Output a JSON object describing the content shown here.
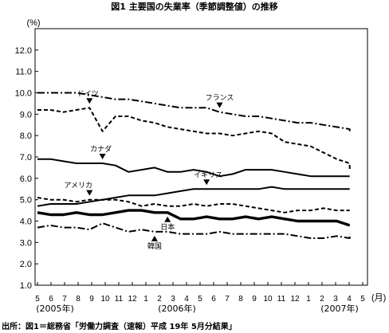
{
  "chart_data": {
    "type": "line",
    "title": "図1 主要国の失業率（季節調整値）の推移",
    "ylabel": "(%)",
    "xlabel": "(月)",
    "ylim": [
      1.0,
      13.0
    ],
    "y_ticks": [
      "1.0",
      "2.0",
      "3.0",
      "4.0",
      "5.0",
      "6.0",
      "7.0",
      "8.0",
      "9.0",
      "10.0",
      "11.0",
      "12.0"
    ],
    "x_ticks": [
      "5",
      "6",
      "7",
      "8",
      "9",
      "10",
      "11",
      "12",
      "1",
      "2",
      "3",
      "4",
      "5",
      "6",
      "7",
      "8",
      "9",
      "10",
      "11",
      "12",
      "1",
      "2",
      "3",
      "4",
      "5"
    ],
    "year_labels": [
      {
        "text": "(2005年)",
        "at": 0
      },
      {
        "text": "(2006年)",
        "at": 9
      },
      {
        "text": "(2007年)",
        "at": 21
      }
    ],
    "source": "出所：図1＝総務省「労働力調査（速報）平成 19年 5月分結果」",
    "grid": false,
    "legend": "inline",
    "series": [
      {
        "name": "フランス",
        "style": "dashdot",
        "label_at": 14,
        "values": [
          10.0,
          10.0,
          10.0,
          10.0,
          9.9,
          9.8,
          9.7,
          9.7,
          9.6,
          9.5,
          9.4,
          9.3,
          9.3,
          9.3,
          9.1,
          9.0,
          8.9,
          8.9,
          8.8,
          8.7,
          8.6,
          8.6,
          8.5,
          8.4,
          8.3,
          8.2
        ]
      },
      {
        "name": "ドイツ",
        "style": "dashed",
        "label_at": 4,
        "values": [
          9.2,
          9.2,
          9.1,
          9.2,
          9.3,
          8.2,
          8.9,
          8.9,
          8.7,
          8.6,
          8.4,
          8.3,
          8.2,
          8.1,
          8.1,
          8.0,
          8.1,
          8.2,
          8.1,
          7.7,
          7.6,
          7.5,
          7.2,
          6.9,
          6.7,
          6.4
        ]
      },
      {
        "name": "カナダ",
        "style": "solid",
        "label_at": 5,
        "values": [
          6.9,
          6.9,
          6.8,
          6.7,
          6.7,
          6.7,
          6.6,
          6.3,
          6.4,
          6.5,
          6.3,
          6.3,
          6.4,
          6.3,
          6.1,
          6.2,
          6.4,
          6.4,
          6.4,
          6.3,
          6.2,
          6.1,
          6.1,
          6.1,
          6.1,
          6.1
        ]
      },
      {
        "name": "イギリス",
        "style": "solid",
        "label_at": 13,
        "values": [
          4.7,
          4.8,
          4.8,
          4.8,
          4.9,
          5.0,
          5.1,
          5.2,
          5.2,
          5.2,
          5.3,
          5.4,
          5.5,
          5.5,
          5.5,
          5.5,
          5.5,
          5.5,
          5.6,
          5.5,
          5.5,
          5.5,
          5.5,
          5.5,
          5.5,
          5.5
        ]
      },
      {
        "name": "アメリカ",
        "style": "dashed",
        "label_at": 4,
        "values": [
          5.1,
          5.0,
          5.0,
          4.9,
          5.0,
          5.0,
          5.0,
          4.9,
          4.7,
          4.8,
          4.7,
          4.7,
          4.8,
          4.7,
          4.8,
          4.8,
          4.7,
          4.6,
          4.5,
          4.4,
          4.5,
          4.5,
          4.6,
          4.5,
          4.5,
          4.5
        ]
      },
      {
        "name": "日本",
        "style": "solid_thick",
        "label_at": 10,
        "values": [
          4.4,
          4.3,
          4.3,
          4.4,
          4.3,
          4.3,
          4.4,
          4.5,
          4.5,
          4.4,
          4.4,
          4.1,
          4.1,
          4.2,
          4.1,
          4.1,
          4.2,
          4.1,
          4.2,
          4.1,
          4.0,
          4.0,
          4.0,
          4.0,
          3.8,
          3.8
        ]
      },
      {
        "name": "韓国",
        "style": "dashdot",
        "label_at": 9,
        "values": [
          3.7,
          3.8,
          3.7,
          3.7,
          3.6,
          3.9,
          3.7,
          3.5,
          3.6,
          3.5,
          3.5,
          3.4,
          3.4,
          3.4,
          3.5,
          3.4,
          3.4,
          3.4,
          3.4,
          3.4,
          3.3,
          3.2,
          3.2,
          3.3,
          3.2,
          3.4
        ]
      }
    ]
  }
}
